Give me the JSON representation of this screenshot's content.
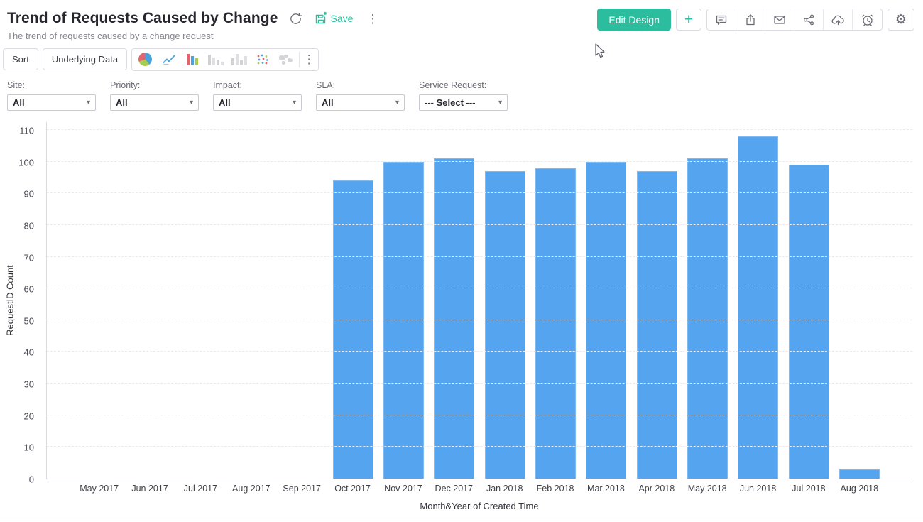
{
  "header": {
    "title": "Trend of Requests Caused by Change",
    "subtitle": "The trend of requests caused by a change request",
    "save_label": "Save",
    "edit_design_label": "Edit Design",
    "add_label": "+",
    "more_glyph": "⋮",
    "gear_glyph": "⚙"
  },
  "toolbar": {
    "sort_label": "Sort",
    "underlying_data_label": "Underlying Data",
    "more_glyph": "⋮"
  },
  "filters": {
    "site": {
      "label": "Site:",
      "value": "All"
    },
    "priority": {
      "label": "Priority:",
      "value": "All"
    },
    "impact": {
      "label": "Impact:",
      "value": "All"
    },
    "sla": {
      "label": "SLA:",
      "value": "All"
    },
    "service_request": {
      "label": "Service Request:",
      "value": "--- Select ---"
    },
    "caret_glyph": "▾"
  },
  "colors": {
    "accent_teal": "#2bbd9e",
    "bar_blue": "#55a4f0",
    "icon_gray": "#6b6b76"
  },
  "chart_data": {
    "type": "bar",
    "title": "Trend of Requests Caused by Change",
    "categories": [
      "May 2017",
      "Jun 2017",
      "Jul 2017",
      "Aug 2017",
      "Sep 2017",
      "Oct 2017",
      "Nov 2017",
      "Dec 2017",
      "Jan 2018",
      "Feb 2018",
      "Mar 2018",
      "Apr 2018",
      "May 2018",
      "Jun 2018",
      "Jul 2018",
      "Aug 2018"
    ],
    "values": [
      0,
      0,
      0,
      0,
      0,
      94,
      100,
      101,
      97,
      98,
      100,
      97,
      101,
      108,
      99,
      3
    ],
    "xlabel": "Month&Year of Created Time",
    "ylabel": "RequestID Count",
    "ylim": [
      0,
      110
    ],
    "ytick_step": 10,
    "grid": true,
    "legend": "none",
    "bar_color": "#55a4f0"
  }
}
